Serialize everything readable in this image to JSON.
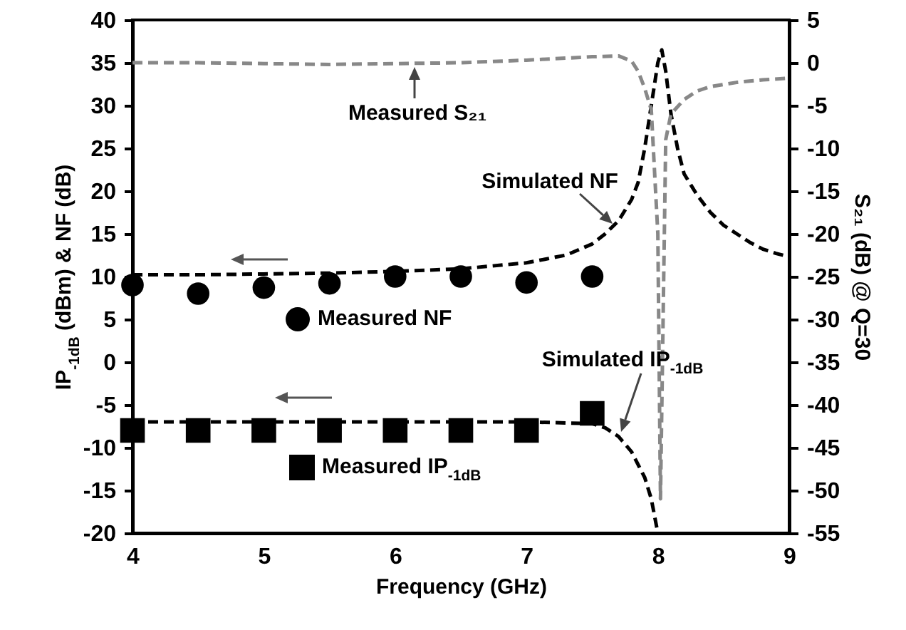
{
  "chart_data": {
    "type": "line",
    "xlabel": "Frequency (GHz)",
    "ylabel": "IP$_{-1dB}$ (dBm) & NF (dB)",
    "y2label": "S₂₁ (dB) @ Q=30",
    "xlim": [
      4,
      9
    ],
    "xticks": [
      4,
      5,
      6,
      7,
      8,
      9
    ],
    "ylim": [
      -20,
      40
    ],
    "yticks": [
      -20,
      -15,
      -10,
      -5,
      0,
      5,
      10,
      15,
      20,
      25,
      30,
      35,
      40
    ],
    "y2lim": [
      -55,
      5
    ],
    "y2ticks": [
      -55,
      -50,
      -45,
      -40,
      -35,
      -30,
      -25,
      -20,
      -15,
      -10,
      -5,
      0,
      5
    ],
    "grid": false,
    "legend": "bottom left",
    "series": [
      {
        "color": "#000000",
        "line_style": "dashed",
        "marker": "none",
        "x": [
          4,
          4.5,
          5,
          5.5,
          6,
          6.5,
          7,
          7.3,
          7.5,
          7.6,
          7.7,
          7.8,
          7.85,
          7.9,
          7.95,
          8.0,
          8.03,
          8.06,
          8.1,
          8.15,
          8.2,
          8.3,
          8.4,
          8.5,
          8.6,
          8.7,
          8.8,
          8.9,
          9
        ],
        "values": [
          10.2,
          10.2,
          10.3,
          10.4,
          10.6,
          10.9,
          11.6,
          12.5,
          13.8,
          15,
          16.5,
          19,
          21,
          25,
          30,
          35,
          36.5,
          34,
          29,
          25,
          22,
          19.5,
          17.5,
          16,
          15,
          14,
          13.2,
          12.7,
          12.3
        ]
      },
      {
        "color": "#000000",
        "line_style": "dashed",
        "marker": "none",
        "x": [
          4,
          5,
          6,
          7,
          7.5,
          7.6,
          7.7,
          7.8,
          7.9,
          7.95,
          8.0
        ],
        "values": [
          -7,
          -7,
          -7,
          -7,
          -7.2,
          -7.7,
          -8.7,
          -10.5,
          -13.5,
          -16,
          -20
        ]
      },
      {
        "color": "#888888",
        "line_style": "dashed",
        "marker": "none",
        "axis": "y2",
        "x": [
          4,
          4.5,
          5,
          5.5,
          6,
          6.5,
          7,
          7.5,
          7.7,
          7.8,
          7.85,
          7.9,
          7.95,
          8.0,
          8.02,
          8.04,
          8.06,
          8.1,
          8.2,
          8.3,
          8.4,
          8.6,
          8.8,
          9
        ],
        "values": [
          0,
          0,
          -0.1,
          -0.2,
          -0.1,
          0,
          0.3,
          0.7,
          0.8,
          0.2,
          -1,
          -3,
          -5.5,
          -20,
          -51,
          -30,
          -9,
          -6,
          -4.3,
          -3.3,
          -2.8,
          -2.3,
          -2,
          -1.8
        ]
      },
      {
        "type": "scatter",
        "name": "Measured NF",
        "color": "#000000",
        "marker": "circle",
        "x": [
          4,
          4.5,
          5,
          5.5,
          6,
          6.5,
          7,
          7.5
        ],
        "values": [
          9,
          8,
          8.7,
          9.2,
          10,
          10,
          9.3,
          10
        ]
      },
      {
        "type": "scatter",
        "name": "Measured IP$_{-1dB}$",
        "color": "#000000",
        "marker": "square",
        "x": [
          4,
          4.5,
          5,
          5.5,
          6,
          6.5,
          7,
          7.5
        ],
        "values": [
          -8,
          -8,
          -8,
          -8,
          -8,
          -8,
          -8,
          -6
        ]
      }
    ],
    "annotations": [
      "Measured S₂₁",
      "Simulated NF",
      "Simulated IP$_{-1dB}$"
    ]
  }
}
